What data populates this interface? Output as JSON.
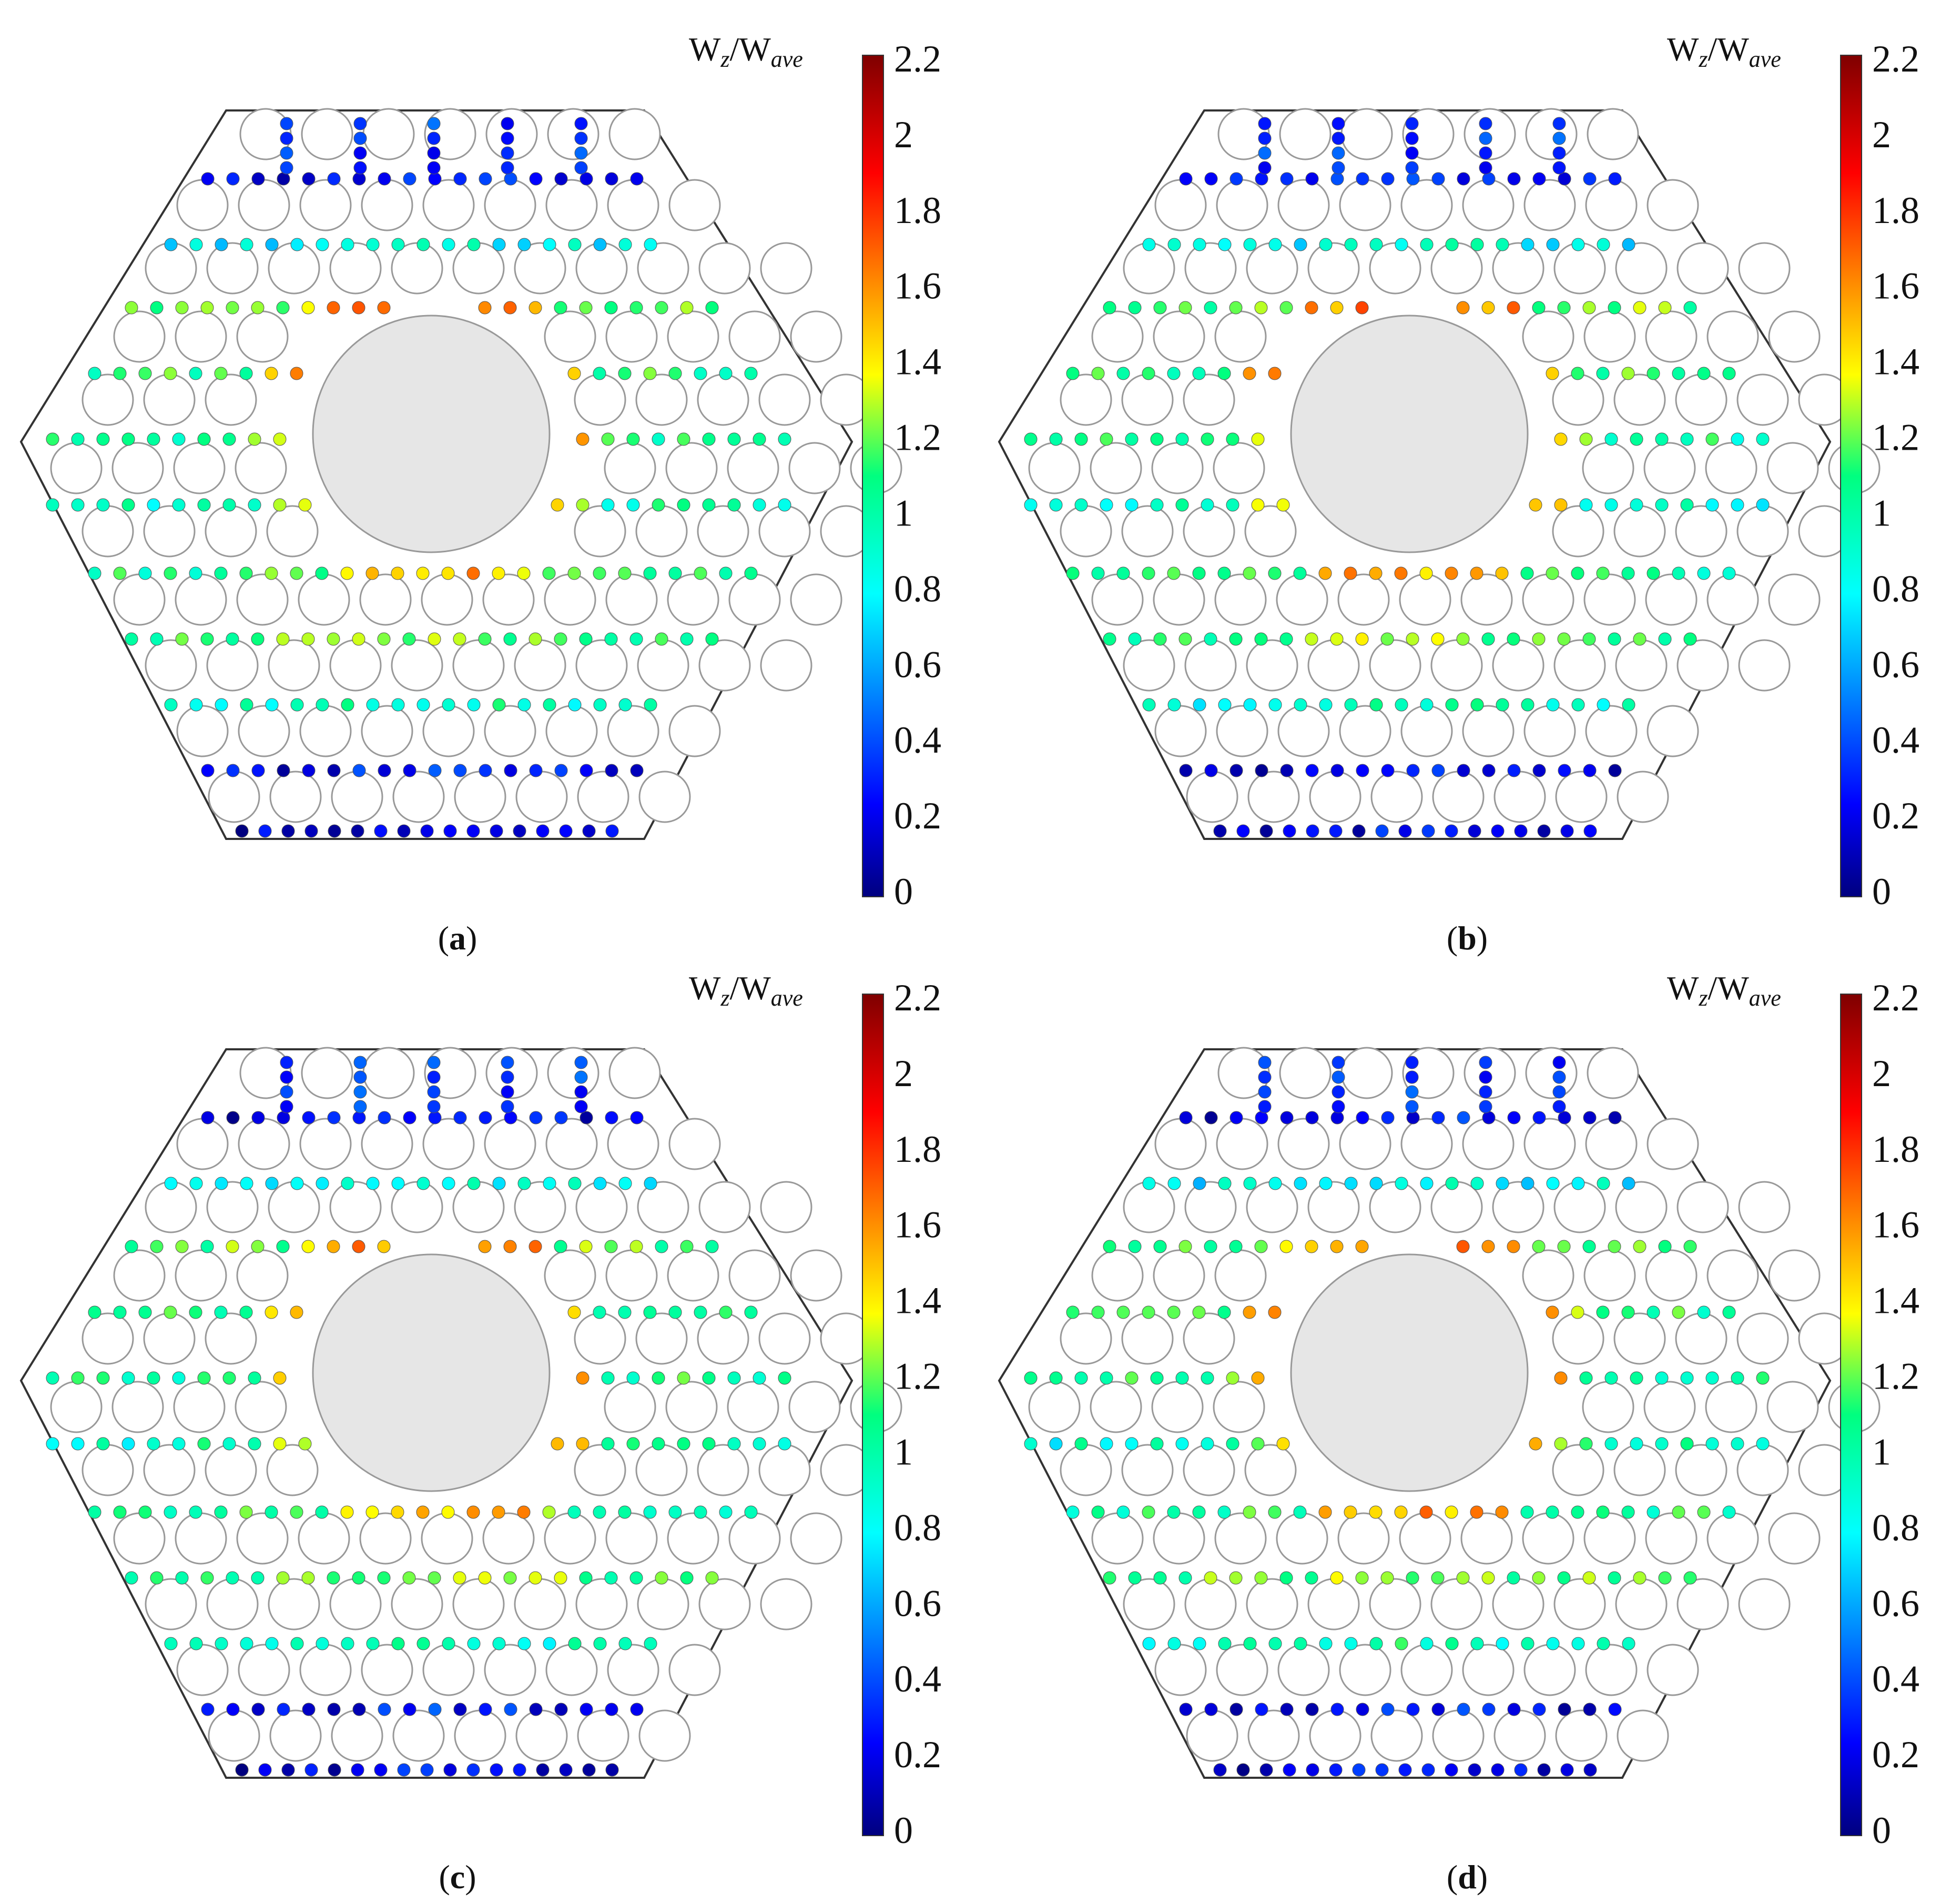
{
  "colorbar": {
    "title_main": "W",
    "title_sub1": "z",
    "title_sep": "/W",
    "title_sub2": "ave",
    "ticks": [
      "2.2",
      "2",
      "1.8",
      "1.6",
      "1.4",
      "1.2",
      "1",
      "0.8",
      "0.6",
      "0.4",
      "0.2",
      "0"
    ],
    "range": [
      0,
      2.2
    ],
    "colormap": "jet"
  },
  "panels": [
    {
      "id": "a",
      "label_open": "(",
      "label": "a",
      "label_close": ")"
    },
    {
      "id": "b",
      "label_open": "(",
      "label": "b",
      "label_close": ")"
    },
    {
      "id": "c",
      "label_open": "(",
      "label": "c",
      "label_close": ")"
    },
    {
      "id": "d",
      "label_open": "(",
      "label": "d",
      "label_close": ")"
    }
  ],
  "colors": {
    "hexagon_stroke": "#333333",
    "rod_stroke": "#999999",
    "center_fill": "#e6e6e6"
  }
}
